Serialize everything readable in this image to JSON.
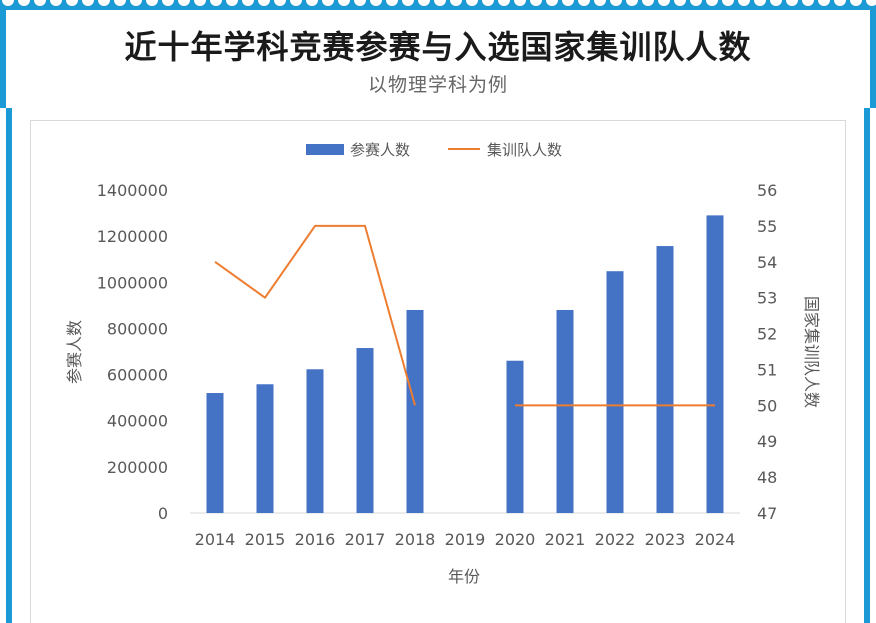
{
  "header": {
    "title": "近十年学科竞赛参赛与入选国家集训队人数",
    "subtitle": "以物理学科为例"
  },
  "colors": {
    "banner": "#1b9ad6",
    "bar": "#4472c4",
    "line": "#ed7d31"
  },
  "chart_data": {
    "type": "bar+line",
    "categories": [
      "2014",
      "2015",
      "2016",
      "2017",
      "2018",
      "2019",
      "2020",
      "2021",
      "2022",
      "2023",
      "2024"
    ],
    "series": [
      {
        "name": "参赛人数",
        "type": "bar",
        "axis": "left",
        "values": [
          520000,
          558000,
          623000,
          715000,
          880000,
          null,
          660000,
          880000,
          1048000,
          1157000,
          1290000
        ]
      },
      {
        "name": "集训队人数",
        "type": "line",
        "axis": "right",
        "values": [
          54,
          53,
          55,
          55,
          50,
          null,
          50,
          50,
          50,
          50,
          50
        ]
      }
    ],
    "xlabel": "年份",
    "ylabel": "参赛人数",
    "y2label": "国家集训队人数",
    "ylim": [
      0,
      1400000
    ],
    "yticks": [
      "0",
      "200000",
      "400000",
      "600000",
      "800000",
      "1000000",
      "1200000",
      "1400000"
    ],
    "y2lim": [
      47,
      56
    ],
    "y2ticks": [
      "47",
      "48",
      "49",
      "50",
      "51",
      "52",
      "53",
      "54",
      "55",
      "56"
    ],
    "legend_position": "top",
    "grid": false
  }
}
